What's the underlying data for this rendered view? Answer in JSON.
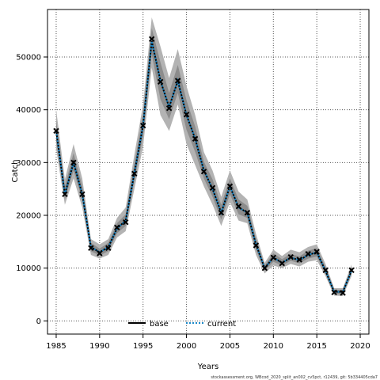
{
  "chart_data": {
    "type": "line",
    "xlabel": "Years",
    "ylabel": "Catch",
    "xlim": [
      1984,
      2021
    ],
    "ylim": [
      -2500,
      59000
    ],
    "x_ticks": [
      1985,
      1990,
      1995,
      2000,
      2005,
      2010,
      2015,
      2020
    ],
    "y_ticks": [
      0,
      10000,
      20000,
      30000,
      40000,
      50000
    ],
    "grid": true,
    "legend_position": "bottom-center",
    "footnote": "stockassessment.org, WBcod_2020_split_an002_cv5pct, r12439, git: 5b334405cda7",
    "x": [
      1985,
      1986,
      1987,
      1988,
      1989,
      1990,
      1991,
      1992,
      1993,
      1994,
      1995,
      1996,
      1997,
      1998,
      1999,
      2000,
      2001,
      2002,
      2003,
      2004,
      2005,
      2006,
      2007,
      2008,
      2009,
      2010,
      2011,
      2012,
      2013,
      2014,
      2015,
      2016,
      2017,
      2018,
      2019
    ],
    "series": [
      {
        "name": "base",
        "style": "solid",
        "color": "#000000",
        "values": [
          36000,
          24000,
          30000,
          24000,
          14000,
          13000,
          14000,
          17500,
          19000,
          28000,
          37000,
          53000,
          45500,
          40500,
          45500,
          39000,
          34500,
          28500,
          25000,
          20500,
          25500,
          21500,
          20500,
          14500,
          10000,
          12000,
          11000,
          12000,
          11500,
          12500,
          13000,
          9500,
          5500,
          5500,
          9500
        ]
      },
      {
        "name": "current",
        "style": "dotted",
        "color": "#1a88c9",
        "values": [
          36000,
          24000,
          30000,
          24000,
          14000,
          13000,
          14000,
          17500,
          19000,
          28000,
          37000,
          53000,
          45500,
          40500,
          45500,
          39000,
          34500,
          28500,
          25000,
          20500,
          25500,
          21500,
          20500,
          14500,
          10000,
          12000,
          11000,
          12000,
          11500,
          12500,
          13000,
          9500,
          5500,
          5500,
          9500
        ]
      }
    ],
    "observed": [
      36000,
      24000,
      30000,
      24000,
      13800,
      12800,
      13800,
      17700,
      18700,
      27900,
      37000,
      53400,
      45300,
      40300,
      45500,
      39100,
      34500,
      28300,
      25200,
      20500,
      25500,
      21700,
      20500,
      14300,
      10000,
      12000,
      10900,
      12100,
      11600,
      12700,
      13100,
      9600,
      5400,
      5300,
      9600
    ],
    "ci_outer_lower": [
      32500,
      22000,
      27000,
      21500,
      12500,
      11800,
      12500,
      15800,
      17000,
      25000,
      33000,
      48000,
      39000,
      36000,
      41000,
      33500,
      29500,
      25500,
      22000,
      18000,
      22500,
      19000,
      18500,
      12500,
      9000,
      10500,
      10000,
      10800,
      10300,
      11200,
      11500,
      8500,
      4800,
      4700,
      8500
    ],
    "ci_outer_upper": [
      40000,
      26800,
      33500,
      27000,
      15500,
      14500,
      15500,
      19500,
      21500,
      31500,
      41000,
      57500,
      52000,
      46000,
      51500,
      44500,
      39000,
      32000,
      28500,
      23500,
      28500,
      24500,
      23000,
      16500,
      11000,
      13500,
      12300,
      13500,
      13000,
      14000,
      14500,
      10800,
      6200,
      6200,
      10700
    ],
    "ci_inner_lower": [
      34000,
      23000,
      28500,
      23000,
      13200,
      12400,
      13200,
      16600,
      18000,
      26500,
      35000,
      50500,
      42000,
      38200,
      43200,
      36200,
      32000,
      27000,
      23500,
      19200,
      24000,
      20200,
      19500,
      13500,
      9500,
      11200,
      10500,
      11400,
      10900,
      11800,
      12200,
      9000,
      5100,
      5100,
      9000
    ],
    "ci_inner_upper": [
      38000,
      25500,
      31800,
      25500,
      14800,
      13700,
      14800,
      18500,
      20200,
      29800,
      39000,
      55500,
      49000,
      43200,
      48500,
      41800,
      36800,
      30200,
      26800,
      22000,
      27000,
      23000,
      21800,
      15500,
      10500,
      12800,
      11700,
      12700,
      12200,
      13300,
      13800,
      10200,
      5900,
      5900,
      10200
    ]
  }
}
